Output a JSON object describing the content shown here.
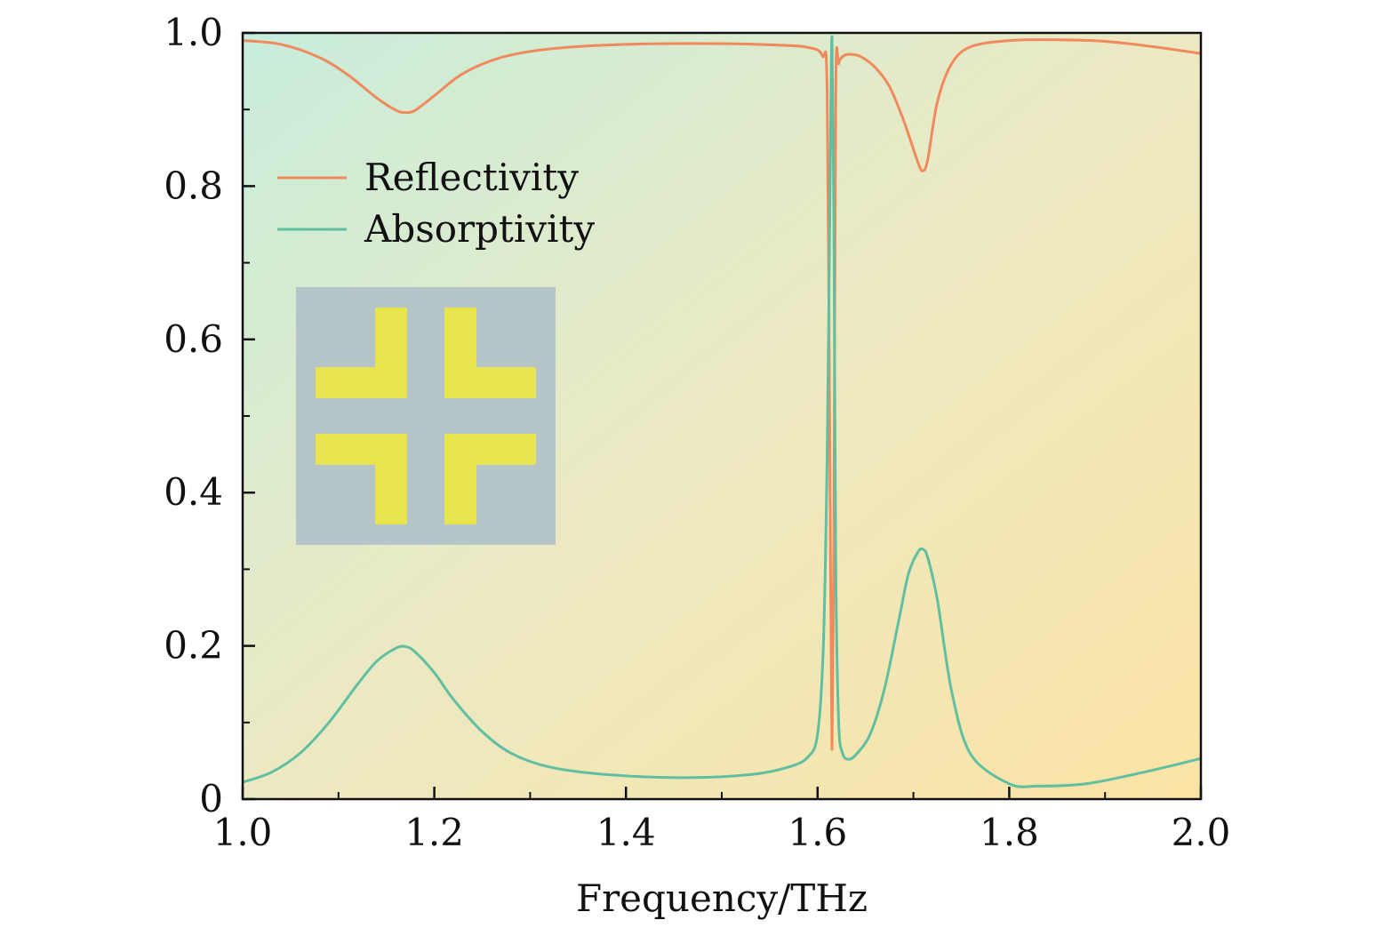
{
  "chart_data": {
    "type": "line",
    "title": "",
    "xlabel": "Frequency/THz",
    "ylabel": "",
    "xlim": [
      1.0,
      2.0
    ],
    "ylim": [
      0,
      1.0
    ],
    "grid": false,
    "legend_position": "upper-left",
    "x_ticks": [
      {
        "value": 1.0,
        "label": "1.0"
      },
      {
        "value": 1.2,
        "label": "1.2"
      },
      {
        "value": 1.4,
        "label": "1.4"
      },
      {
        "value": 1.6,
        "label": "1.6"
      },
      {
        "value": 1.8,
        "label": "1.8"
      },
      {
        "value": 2.0,
        "label": "2.0"
      }
    ],
    "y_ticks": [
      {
        "value": 0,
        "label": "0"
      },
      {
        "value": 0.2,
        "label": "0.2"
      },
      {
        "value": 0.4,
        "label": "0.4"
      },
      {
        "value": 0.6,
        "label": "0.6"
      },
      {
        "value": 0.8,
        "label": "0.8"
      },
      {
        "value": 1.0,
        "label": "1.0"
      }
    ],
    "series": [
      {
        "name": "Reflectivity",
        "color": "#f08a5d",
        "x": [
          1.0,
          1.04,
          1.08,
          1.11,
          1.14,
          1.16,
          1.17,
          1.18,
          1.2,
          1.23,
          1.27,
          1.32,
          1.4,
          1.5,
          1.56,
          1.59,
          1.605,
          1.61,
          1.613,
          1.615,
          1.617,
          1.619,
          1.622,
          1.627,
          1.635,
          1.645,
          1.66,
          1.675,
          1.69,
          1.705,
          1.71,
          1.715,
          1.725,
          1.74,
          1.76,
          1.8,
          1.85,
          1.9,
          1.95,
          2.0
        ],
        "values": [
          0.99,
          0.985,
          0.968,
          0.945,
          0.915,
          0.899,
          0.896,
          0.899,
          0.918,
          0.947,
          0.968,
          0.979,
          0.985,
          0.986,
          0.984,
          0.981,
          0.97,
          0.92,
          0.4,
          0.065,
          0.35,
          0.93,
          0.96,
          0.97,
          0.972,
          0.969,
          0.955,
          0.93,
          0.885,
          0.83,
          0.82,
          0.835,
          0.91,
          0.96,
          0.982,
          0.99,
          0.991,
          0.989,
          0.982,
          0.973
        ]
      },
      {
        "name": "Absorptivity",
        "color": "#5fbfa0",
        "x": [
          1.0,
          1.03,
          1.06,
          1.09,
          1.12,
          1.14,
          1.16,
          1.17,
          1.18,
          1.2,
          1.22,
          1.25,
          1.28,
          1.32,
          1.38,
          1.46,
          1.53,
          1.57,
          1.59,
          1.6,
          1.606,
          1.61,
          1.613,
          1.615,
          1.617,
          1.619,
          1.622,
          1.626,
          1.632,
          1.64,
          1.655,
          1.67,
          1.685,
          1.695,
          1.705,
          1.71,
          1.715,
          1.725,
          1.74,
          1.76,
          1.8,
          1.83,
          1.88,
          1.94,
          2.0
        ],
        "values": [
          0.022,
          0.035,
          0.06,
          0.1,
          0.15,
          0.18,
          0.197,
          0.199,
          0.192,
          0.165,
          0.13,
          0.088,
          0.06,
          0.042,
          0.032,
          0.028,
          0.032,
          0.042,
          0.055,
          0.085,
          0.2,
          0.45,
          0.8,
          0.995,
          0.75,
          0.3,
          0.1,
          0.06,
          0.052,
          0.058,
          0.085,
          0.145,
          0.235,
          0.295,
          0.323,
          0.326,
          0.315,
          0.26,
          0.14,
          0.058,
          0.02,
          0.017,
          0.02,
          0.035,
          0.053
        ]
      }
    ]
  },
  "inset": {
    "description_color_substrate": "#b5c4c8",
    "description_color_metal": "#e8e44c"
  }
}
